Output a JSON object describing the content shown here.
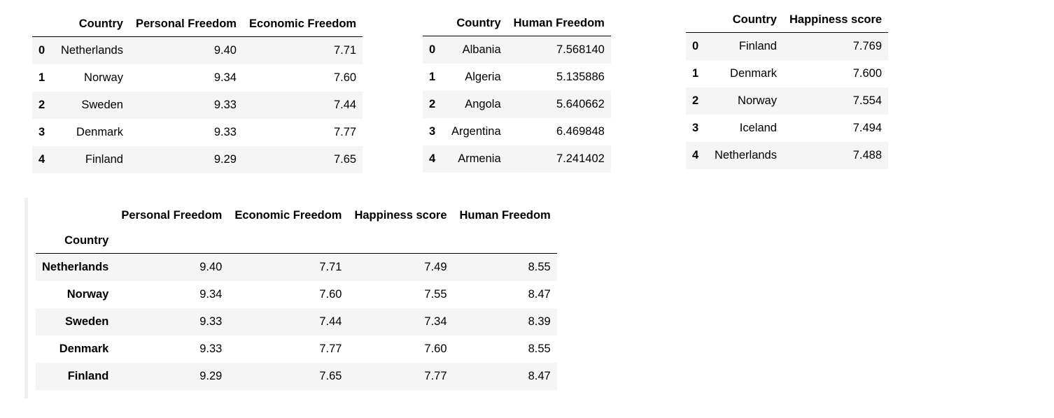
{
  "table1": {
    "columns": [
      "",
      "Country",
      "Personal Freedom",
      "Economic Freedom"
    ],
    "rows": [
      [
        "0",
        "Netherlands",
        "9.40",
        "7.71"
      ],
      [
        "1",
        "Norway",
        "9.34",
        "7.60"
      ],
      [
        "2",
        "Sweden",
        "9.33",
        "7.44"
      ],
      [
        "3",
        "Denmark",
        "9.33",
        "7.77"
      ],
      [
        "4",
        "Finland",
        "9.29",
        "7.65"
      ]
    ]
  },
  "table2": {
    "columns": [
      "",
      "Country",
      "Human Freedom"
    ],
    "rows": [
      [
        "0",
        "Albania",
        "7.568140"
      ],
      [
        "1",
        "Algeria",
        "5.135886"
      ],
      [
        "2",
        "Angola",
        "5.640662"
      ],
      [
        "3",
        "Argentina",
        "6.469848"
      ],
      [
        "4",
        "Armenia",
        "7.241402"
      ]
    ]
  },
  "table3": {
    "columns": [
      "",
      "Country",
      "Happiness score"
    ],
    "rows": [
      [
        "0",
        "Finland",
        "7.769"
      ],
      [
        "1",
        "Denmark",
        "7.600"
      ],
      [
        "2",
        "Norway",
        "7.554"
      ],
      [
        "3",
        "Iceland",
        "7.494"
      ],
      [
        "4",
        "Netherlands",
        "7.488"
      ]
    ]
  },
  "table4": {
    "index_name": "Country",
    "columns": [
      "Personal Freedom",
      "Economic Freedom",
      "Happiness score",
      "Human Freedom"
    ],
    "rows": [
      [
        "Netherlands",
        "9.40",
        "7.71",
        "7.49",
        "8.55"
      ],
      [
        "Norway",
        "9.34",
        "7.60",
        "7.55",
        "8.47"
      ],
      [
        "Sweden",
        "9.33",
        "7.44",
        "7.34",
        "8.39"
      ],
      [
        "Denmark",
        "9.33",
        "7.77",
        "7.60",
        "8.55"
      ],
      [
        "Finland",
        "9.29",
        "7.65",
        "7.77",
        "8.47"
      ]
    ]
  }
}
